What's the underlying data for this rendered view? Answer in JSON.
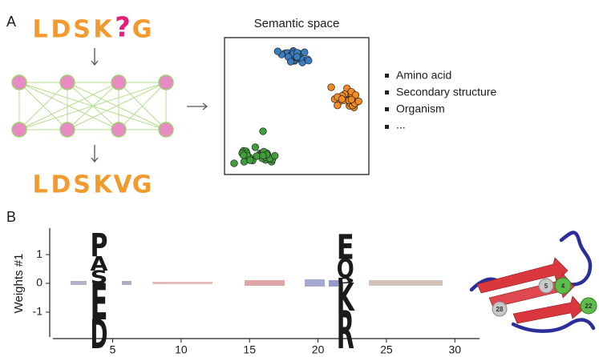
{
  "panel_a": {
    "label": "A",
    "input_sequence": [
      "L",
      "D",
      "S",
      "K",
      "?",
      "G"
    ],
    "output_sequence": [
      "L",
      "D",
      "S",
      "K",
      "V",
      "G"
    ],
    "semantic_space": {
      "title": "Semantic space"
    },
    "properties": [
      "Amino acid",
      "Secondary structure",
      "Organism",
      "..."
    ]
  },
  "chart_data": {
    "type": "logo",
    "label": "B",
    "ylabel": "Weights #1",
    "xlim": [
      0.4,
      31.8
    ],
    "xticks": [
      5,
      10,
      15,
      20,
      25,
      30
    ],
    "ylim": [
      -1.92,
      1.92
    ],
    "yticks": [
      1,
      0,
      -1
    ],
    "columns": [
      {
        "position": 4,
        "positive": [
          {
            "letter": "S",
            "height": 0.45,
            "color": "#8c8c8c"
          },
          {
            "letter": "A",
            "height": 0.5,
            "color": "#8c8c8c"
          },
          {
            "letter": "P",
            "height": 0.8,
            "color": "#8c8c8c"
          }
        ],
        "negative": [
          {
            "letter": "E",
            "height": 1.25,
            "color": "#e41a1c"
          },
          {
            "letter": "D",
            "height": 1.0,
            "color": "#e41a1c"
          }
        ]
      },
      {
        "position": 22,
        "positive": [
          {
            "letter": "D",
            "height": 0.2,
            "color": "#e41a1c"
          },
          {
            "letter": "Q",
            "height": 0.65,
            "color": "#d7303a"
          },
          {
            "letter": "E",
            "height": 0.85,
            "color": "#e41a1c"
          }
        ],
        "negative": [
          {
            "letter": "K",
            "height": 0.95,
            "color": "#2b3a9c"
          },
          {
            "letter": "R",
            "height": 1.3,
            "color": "#2b3a9c"
          }
        ]
      }
    ]
  },
  "structure": {
    "residue_labels": [
      "5",
      "4",
      "28",
      "22"
    ]
  }
}
